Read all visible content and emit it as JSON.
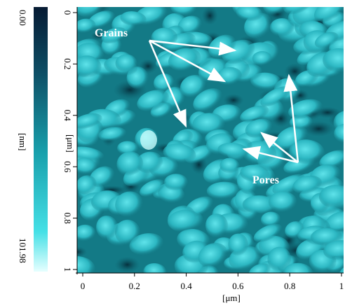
{
  "colorbar": {
    "min": "0.00",
    "unit": "[nm]",
    "max": "101.98"
  },
  "y_axis": {
    "ticks": [
      0,
      0.2,
      0.4,
      0.6,
      0.8,
      1
    ],
    "label": "[μm]"
  },
  "x_axis": {
    "ticks": [
      0,
      0.2,
      0.4,
      0.6,
      0.8,
      1
    ],
    "label": "[μm]"
  },
  "annotations": [
    {
      "label": "Grains"
    },
    {
      "label": "Pores"
    }
  ]
}
